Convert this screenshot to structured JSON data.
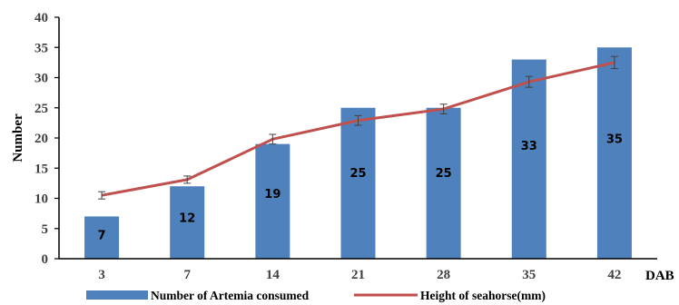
{
  "chart_data": {
    "type": "bar",
    "categories": [
      "3",
      "7",
      "14",
      "21",
      "28",
      "35",
      "42"
    ],
    "xlabel": "DAB",
    "ylabel": "Number",
    "ylim": [
      0,
      40
    ],
    "yticks": [
      0,
      5,
      10,
      15,
      20,
      25,
      30,
      35,
      40
    ],
    "grid": false,
    "legend_position": "bottom",
    "series": [
      {
        "name": "Number of Artemia consumed",
        "type": "bar",
        "color": "#4f81bd",
        "values": [
          7,
          12,
          19,
          25,
          25,
          33,
          35
        ],
        "data_labels": [
          "7",
          "12",
          "19",
          "25",
          "25",
          "33",
          "35"
        ]
      },
      {
        "name": "Height of seahorse(mm)",
        "type": "line",
        "color": "#c0504d",
        "values": [
          10.5,
          13.1,
          19.8,
          22.9,
          24.8,
          29.3,
          32.5
        ],
        "error": [
          0.6,
          0.6,
          0.8,
          0.8,
          0.8,
          0.9,
          1.0
        ]
      }
    ]
  }
}
